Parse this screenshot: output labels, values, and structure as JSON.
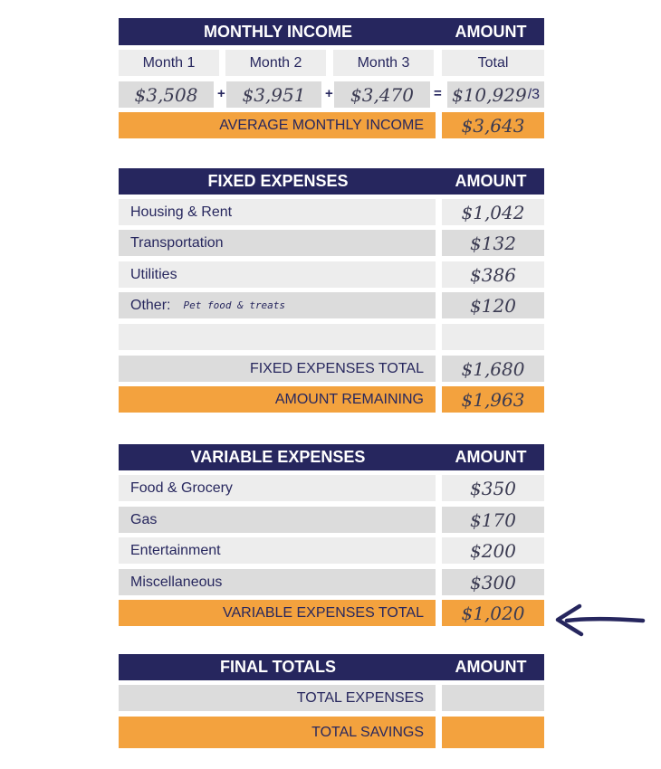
{
  "income": {
    "header": "MONTHLY INCOME",
    "amount_header": "AMOUNT",
    "month_labels": [
      "Month 1",
      "Month 2",
      "Month 3",
      "Total"
    ],
    "month_values": [
      "$3,508",
      "$3,951",
      "$3,470",
      "$10,929"
    ],
    "plus": "+",
    "equals": "=",
    "total_divisor": "/3",
    "average_label": "AVERAGE MONTHLY INCOME",
    "average_value": "$3,643"
  },
  "fixed": {
    "header": "FIXED EXPENSES",
    "amount_header": "AMOUNT",
    "rows": [
      {
        "label": "Housing & Rent",
        "value": "$1,042"
      },
      {
        "label": "Transportation",
        "value": "$132"
      },
      {
        "label": "Utilities",
        "value": "$386"
      },
      {
        "label": "Other:",
        "note": "Pet food & treats",
        "value": "$120"
      },
      {
        "label": "",
        "value": ""
      }
    ],
    "total_label": "FIXED EXPENSES TOTAL",
    "total_value": "$1,680",
    "remaining_label": "AMOUNT REMAINING",
    "remaining_value": "$1,963"
  },
  "variable": {
    "header": "VARIABLE EXPENSES",
    "amount_header": "AMOUNT",
    "rows": [
      {
        "label": "Food & Grocery",
        "value": "$350"
      },
      {
        "label": "Gas",
        "value": "$170"
      },
      {
        "label": "Entertainment",
        "value": "$200"
      },
      {
        "label": "Miscellaneous",
        "value": "$300"
      }
    ],
    "total_label": "VARIABLE EXPENSES TOTAL",
    "total_value": "$1,020"
  },
  "final": {
    "header": "FINAL TOTALS",
    "amount_header": "AMOUNT",
    "total_expenses_label": "TOTAL EXPENSES",
    "total_expenses_value": "",
    "total_savings_label": "TOTAL SAVINGS",
    "total_savings_value": ""
  },
  "colors": {
    "navy": "#26265e",
    "orange": "#f3a23e",
    "light_grey": "#ededed",
    "grey": "#dcdcdc"
  },
  "annotation": {
    "arrow_icon": "left-arrow-icon"
  }
}
